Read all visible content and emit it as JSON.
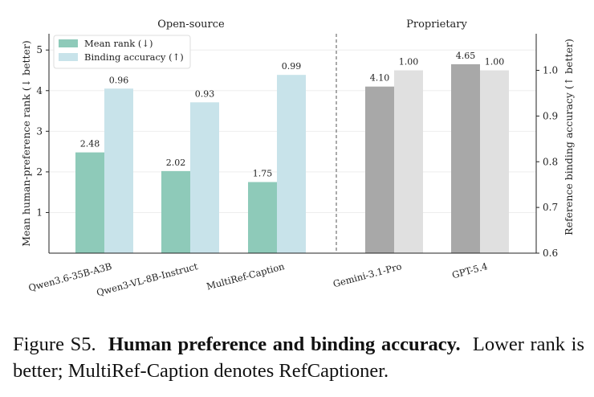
{
  "chart_data": {
    "type": "bar",
    "groups": [
      {
        "title": "Open-source",
        "categories": [
          "Qwen3.6-35B-A3B",
          "Qwen3-VL-8B-Instruct",
          "MultiRef-Caption"
        ]
      },
      {
        "title": "Proprietary",
        "categories": [
          "Gemini-3.1-Pro",
          "GPT-5.4"
        ]
      }
    ],
    "categories": [
      "Qwen3.6-35B-A3B",
      "Qwen3-VL-8B-Instruct",
      "MultiRef-Caption",
      "Gemini-3.1-Pro",
      "GPT-5.4"
    ],
    "series": [
      {
        "name": "Mean rank (↓)",
        "axis": "left",
        "values": [
          2.48,
          2.02,
          1.75,
          4.1,
          4.65
        ],
        "labels": [
          "2.48",
          "2.02",
          "1.75",
          "4.10",
          "4.65"
        ]
      },
      {
        "name": "Binding accuracy (↑)",
        "axis": "right",
        "values": [
          0.96,
          0.93,
          0.99,
          1.0,
          1.0
        ],
        "labels": [
          "0.96",
          "0.93",
          "0.99",
          "1.00",
          "1.00"
        ]
      }
    ],
    "ylabel_left": "Mean human-preference rank (↓ better)",
    "ylabel_right": "Reference binding accuracy (↑ better)",
    "ylim_left": [
      0,
      5.4
    ],
    "ylim_right": [
      0.6,
      1.08
    ],
    "yticks_left": [
      "1",
      "2",
      "3",
      "4",
      "5"
    ],
    "yticks_right": [
      "0.6",
      "0.7",
      "0.8",
      "0.9",
      "1.0"
    ],
    "grid": true,
    "legend_position": "top-left",
    "colors": {
      "open_rank": "#8ecab9",
      "open_acc": "#c8e3ea",
      "prop_rank": "#a8a8a8",
      "prop_acc": "#e0e0e0",
      "axis": "#222222",
      "grid": "#eeeeee",
      "divider": "#555555"
    }
  },
  "caption": {
    "prefix": "Figure S5.",
    "bold": "Human preference and binding accuracy.",
    "rest": "Lower rank is better; MultiRef-Caption denotes RefCaptioner."
  }
}
